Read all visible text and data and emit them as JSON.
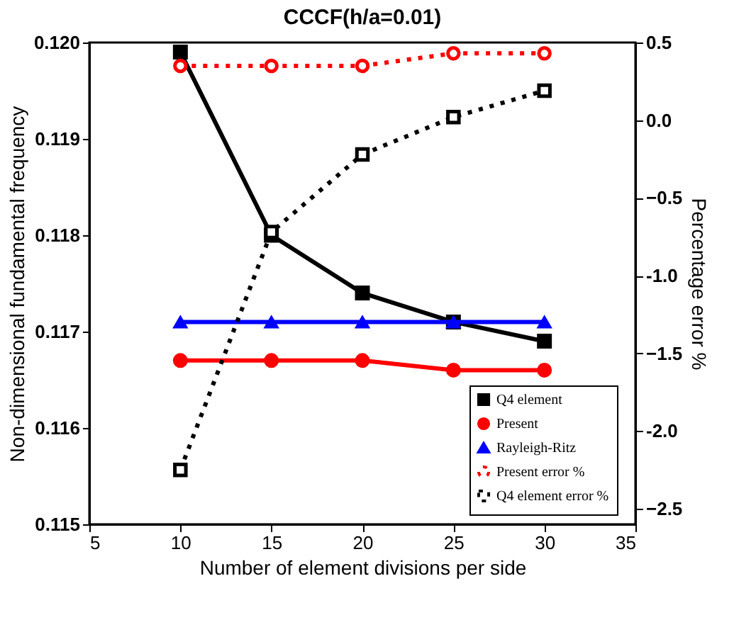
{
  "chart_data": {
    "type": "line",
    "title": "CCCF(h/a=0.01)",
    "xlabel": "Number of element divisions per side",
    "ylabel": "Non-dimensional fundamental frequency",
    "y2label": "Percentage error %",
    "x": [
      10,
      15,
      20,
      25,
      30
    ],
    "series": [
      {
        "name": "Q4 element",
        "color": "#000000",
        "marker": "square",
        "line_style": "solid",
        "values": [
          0.1199,
          0.118,
          0.1174,
          0.1171,
          0.1169
        ]
      },
      {
        "name": "Present",
        "color": "#ff0000",
        "marker": "circle",
        "line_style": "solid",
        "values": [
          0.1167,
          0.1167,
          0.1167,
          0.1166,
          0.1166
        ]
      },
      {
        "name": "Rayleigh-Ritz",
        "color": "#0000ff",
        "marker": "triangle",
        "line_style": "solid",
        "values": [
          0.1171,
          0.1171,
          0.1171,
          0.1171,
          0.1171
        ]
      },
      {
        "name": "Present error %",
        "color": "#ff0000",
        "marker": "circle",
        "line_style": "dotted",
        "axis": "y2",
        "values": [
          0.35,
          0.35,
          0.35,
          0.43,
          0.43
        ]
      },
      {
        "name": "Q4 element error %",
        "color": "#000000",
        "marker": "square",
        "line_style": "dotted",
        "axis": "y2",
        "values": [
          -2.25,
          -0.72,
          -0.22,
          0.02,
          0.19
        ]
      }
    ],
    "xlim": [
      5,
      35
    ],
    "xticks": [
      5,
      10,
      15,
      20,
      25,
      30,
      35
    ],
    "ylim": [
      0.115,
      0.12
    ],
    "yticks": [
      0.115,
      0.116,
      0.117,
      0.118,
      0.119,
      {
        "value": 0.12,
        "label": "0.120"
      }
    ],
    "y2lim": [
      -2.6,
      0.5
    ],
    "y2ticks": [
      -2.5,
      {
        "value": -2,
        "label": "-2.0"
      },
      -1.5,
      {
        "value": -1,
        "label": "-1.0"
      },
      -0.5,
      {
        "value": 0,
        "label": "0.0"
      },
      0.5
    ],
    "grid": false,
    "legend": "bottom right"
  }
}
